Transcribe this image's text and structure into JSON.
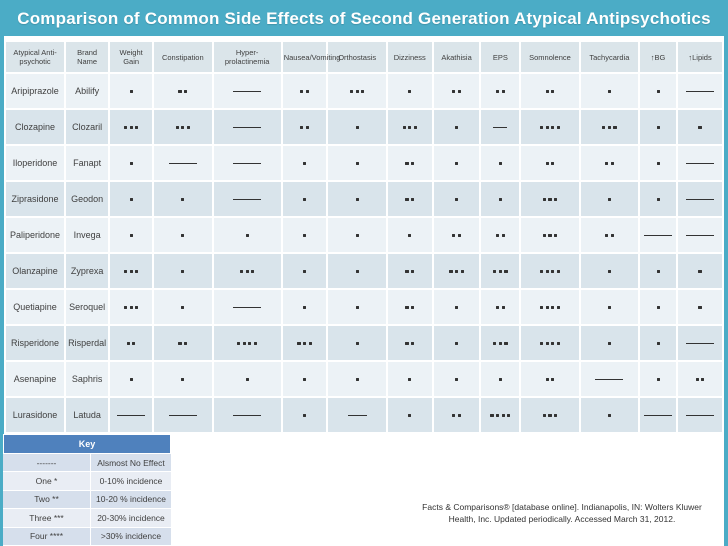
{
  "title": "Comparison of Common Side Effects of Second Generation Atypical Antipsychotics",
  "colors": {
    "frame_teal": "#4bacc6",
    "table_header_bg": "#dbe5ea",
    "row_light": "#ecf2f6",
    "row_dark": "#d9e4eb",
    "key_header_blue": "#4f81bd",
    "key_row_dark": "#d6dfec",
    "key_row_light": "#e9edf4",
    "text_dark": "#3f3f3f"
  },
  "table": {
    "headers": [
      "Atypical Anti-psychotic",
      "Brand Name",
      "Weight Gain",
      "Constipation",
      "Hyper-prolactinemia",
      "Nausea/Vomiting",
      "Orthostasis",
      "Dizziness",
      "Akathisia",
      "EPS",
      "Somnolence",
      "Tachycardia",
      "↑BG",
      "↑Lipids"
    ],
    "rows": [
      {
        "drug": "Aripiprazole",
        "brand": "Abilify",
        "effects": [
          "*",
          "**",
          "------",
          "**",
          "***",
          "*",
          "**",
          "**",
          "**",
          "*",
          "*",
          "------"
        ]
      },
      {
        "drug": "Clozapine",
        "brand": "Clozaril",
        "effects": [
          "***",
          "***",
          "------",
          "**",
          "*",
          "***",
          "*",
          "---",
          "****",
          "***",
          "*",
          "*"
        ]
      },
      {
        "drug": "Iloperidone",
        "brand": "Fanapt",
        "effects": [
          "*",
          "------",
          "------",
          "*",
          "*",
          "**",
          "*",
          "*",
          "**",
          "**",
          "*",
          "------"
        ]
      },
      {
        "drug": "Ziprasidone",
        "brand": "Geodon",
        "effects": [
          "*",
          "*",
          "------",
          "*",
          "*",
          "**",
          "*",
          "*",
          "***",
          "*",
          "*",
          "------"
        ]
      },
      {
        "drug": "Paliperidone",
        "brand": "Invega",
        "effects": [
          "*",
          "*",
          "*",
          "*",
          "*",
          "*",
          "**",
          "**",
          "***",
          "**",
          "------",
          "------"
        ]
      },
      {
        "drug": "Olanzapine",
        "brand": "Zyprexa",
        "effects": [
          "***",
          "*",
          "***",
          "*",
          "*",
          "**",
          "***",
          "***",
          "****",
          "*",
          "*",
          "*"
        ]
      },
      {
        "drug": "Quetiapine",
        "brand": "Seroquel",
        "effects": [
          "***",
          "*",
          "------",
          "*",
          "*",
          "**",
          "*",
          "**",
          "****",
          "*",
          "*",
          "*"
        ]
      },
      {
        "drug": "Risperidone",
        "brand": "Risperdal",
        "effects": [
          "**",
          "**",
          "****",
          "***",
          "*",
          "**",
          "*",
          "***",
          "****",
          "*",
          "*",
          "------"
        ]
      },
      {
        "drug": "Asenapine",
        "brand": "Saphris",
        "effects": [
          "*",
          "*",
          "*",
          "*",
          "*",
          "*",
          "*",
          "*",
          "**",
          "------",
          "*",
          "**"
        ]
      },
      {
        "drug": "Lurasidone",
        "brand": "Latuda",
        "effects": [
          "------",
          "------",
          "------",
          "*",
          "----",
          "*",
          "**",
          "****",
          "***",
          "*",
          "------",
          "------"
        ]
      }
    ]
  },
  "key": {
    "title": "Key",
    "rows": [
      {
        "symbol": "-------",
        "meaning": "Alsmost No Effect"
      },
      {
        "symbol": "One *",
        "meaning": "0-10% incidence"
      },
      {
        "symbol": "Two **",
        "meaning": "10-20 % incidence"
      },
      {
        "symbol": "Three ***",
        "meaning": "20-30% incidence"
      },
      {
        "symbol": "Four ****",
        "meaning": ">30% incidence"
      }
    ]
  },
  "citation": "Facts & Comparisons® [database online]. Indianapolis, IN: Wolters Kluwer Health, Inc. Updated periodically. Accessed March 31, 2012."
}
